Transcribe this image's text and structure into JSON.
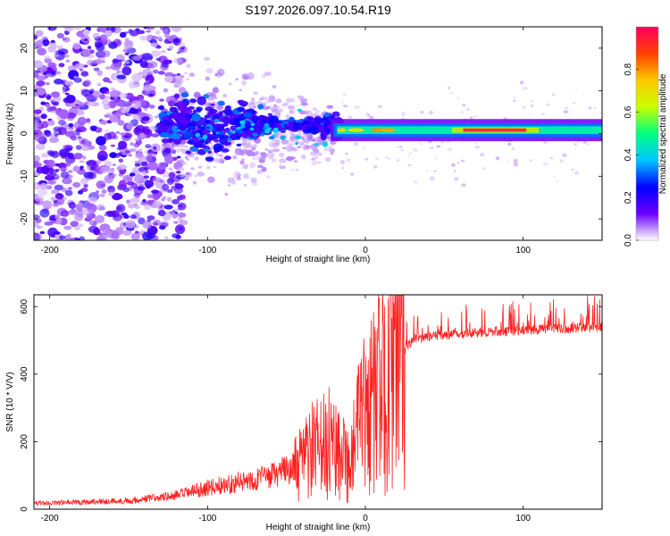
{
  "title": "S197.2026.097.10.54.R19",
  "chart_data": [
    {
      "type": "heatmap",
      "name": "spectrogram",
      "xlabel": "Height of straight line (km)",
      "ylabel": "Frequency (Hz)",
      "xlim": [
        -210,
        150
      ],
      "ylim": [
        -25,
        25
      ],
      "x_ticks": [
        -200,
        -100,
        0,
        100
      ],
      "y_ticks": [
        -20,
        -10,
        0,
        10,
        20
      ],
      "colorbar": {
        "label": "Normalized spectral amplitude",
        "range": [
          0,
          1
        ],
        "ticks": [
          0.0,
          0.2,
          0.4,
          0.6,
          0.8
        ],
        "tick_labels": [
          "0.0",
          "0.2",
          "0.4",
          "0.6",
          "0.8"
        ],
        "colormap": [
          "#ffffff",
          "#6a00ff",
          "#0000ff",
          "#00c8ff",
          "#00ff80",
          "#c8ff00",
          "#ffc800",
          "#ff4000",
          "#ff0060"
        ]
      },
      "features": {
        "carrier_line_freq_hz": 0.8,
        "carrier_line_start_km": -20,
        "noise_region_end_km": -120,
        "transition_region_km": [
          -120,
          -20
        ]
      }
    },
    {
      "type": "line",
      "name": "snr",
      "xlabel": "Height of straight line (km)",
      "ylabel": "SNR (10 * V/V)",
      "xlim": [
        -210,
        150
      ],
      "ylim": [
        0,
        635
      ],
      "x_ticks": [
        -200,
        -100,
        0,
        100
      ],
      "y_ticks": [
        0,
        200,
        400,
        600
      ],
      "color": "#ff2020",
      "envelope": {
        "x": [
          -210,
          -150,
          -120,
          -100,
          -80,
          -60,
          -45,
          -40,
          -35,
          -30,
          -25,
          -20,
          -15,
          -10,
          -5,
          0,
          5,
          10,
          15,
          20,
          25,
          30,
          40,
          50,
          60,
          80,
          100,
          120,
          150
        ],
        "y": [
          15,
          22,
          35,
          55,
          70,
          85,
          110,
          135,
          170,
          175,
          185,
          200,
          190,
          120,
          230,
          280,
          320,
          360,
          400,
          430,
          470,
          500,
          510,
          515,
          520,
          525,
          530,
          535,
          540
        ]
      }
    }
  ]
}
